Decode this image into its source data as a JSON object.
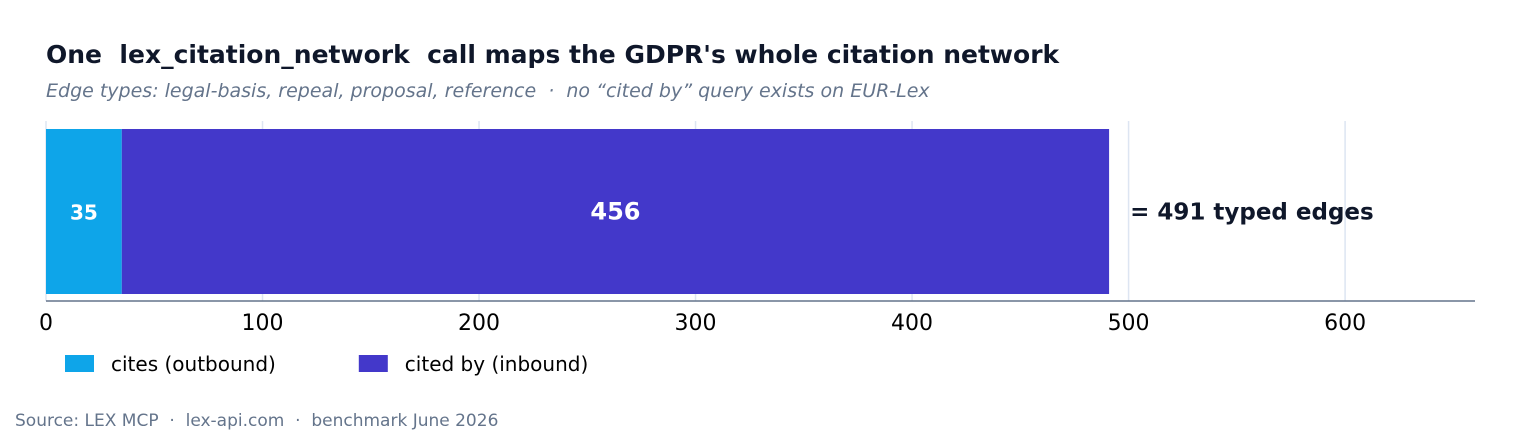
{
  "header": {
    "title": "One  lex_citation_network  call maps the GDPR's whole citation network",
    "subtitle": "Edge types: legal-basis, repeal, proposal, reference  ·  no “cited by” query exists on EUR-Lex"
  },
  "footer": {
    "source": "Source: LEX MCP  ·  lex-api.com  ·  benchmark June 2026"
  },
  "chart_data": {
    "type": "bar",
    "orientation": "horizontal",
    "stacked": true,
    "categories": [
      ""
    ],
    "series": [
      {
        "name": "cites (outbound)",
        "values": [
          35
        ],
        "color": "#0ea5e9"
      },
      {
        "name": "cited by (inbound)",
        "values": [
          456
        ],
        "color": "#4338ca"
      }
    ],
    "data_labels": [
      "35",
      "456"
    ],
    "total_annotation": "= 491 typed edges",
    "xlim": [
      0,
      660
    ],
    "xticks": [
      0,
      100,
      200,
      300,
      400,
      500,
      600
    ],
    "grid": true,
    "legend_position": "bottom-left",
    "xlabel": "",
    "ylabel": ""
  }
}
